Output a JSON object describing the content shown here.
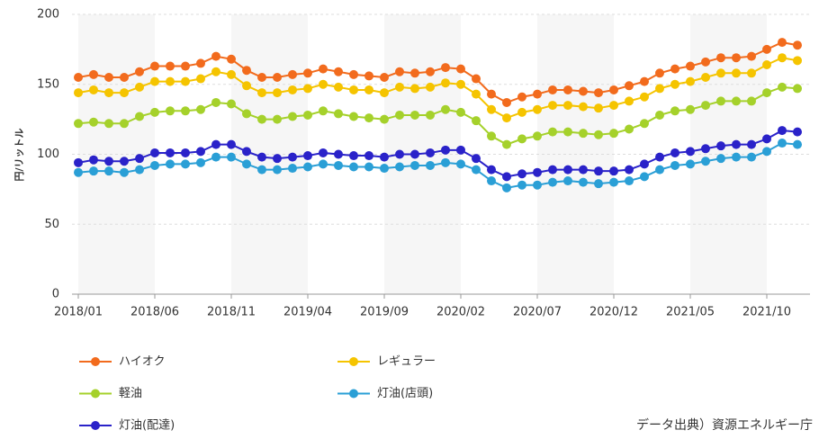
{
  "chart_data": {
    "type": "line",
    "y_label": "円/リットル",
    "source": "データ出典）資源エネルギー庁",
    "categories": [
      "2018/01",
      null,
      null,
      null,
      null,
      "2018/06",
      null,
      null,
      null,
      null,
      "2018/11",
      null,
      null,
      null,
      null,
      "2019/04",
      null,
      null,
      null,
      null,
      "2019/09",
      null,
      null,
      null,
      null,
      "2020/02",
      null,
      null,
      null,
      null,
      "2020/07",
      null,
      null,
      null,
      null,
      "2020/12",
      null,
      null,
      null,
      null,
      "2021/05",
      null,
      null,
      null,
      null,
      "2021/10",
      null,
      null
    ],
    "ylim": [
      0,
      200
    ],
    "yticks": [
      0,
      50,
      100,
      150,
      200
    ],
    "grid": true,
    "series": [
      {
        "name": "ハイオク",
        "color": "#f26b1d",
        "values": [
          155,
          157,
          155,
          155,
          159,
          163,
          163,
          163,
          165,
          170,
          168,
          160,
          155,
          155,
          157,
          158,
          161,
          159,
          157,
          156,
          155,
          159,
          158,
          159,
          162,
          161,
          154,
          143,
          137,
          141,
          143,
          146,
          146,
          145,
          144,
          146,
          149,
          152,
          158,
          161,
          163,
          166,
          169,
          169,
          170,
          175,
          180,
          178
        ]
      },
      {
        "name": "レギュラー",
        "color": "#f5c400",
        "values": [
          144,
          146,
          144,
          144,
          148,
          152,
          152,
          152,
          154,
          159,
          157,
          149,
          144,
          144,
          146,
          147,
          150,
          148,
          146,
          146,
          144,
          148,
          147,
          148,
          151,
          150,
          143,
          132,
          126,
          130,
          132,
          135,
          135,
          134,
          133,
          135,
          138,
          141,
          147,
          150,
          152,
          155,
          158,
          158,
          158,
          164,
          169,
          167
        ]
      },
      {
        "name": "軽油",
        "color": "#a5d12b",
        "values": [
          122,
          123,
          122,
          122,
          127,
          130,
          131,
          131,
          132,
          137,
          136,
          129,
          125,
          125,
          127,
          128,
          131,
          129,
          127,
          126,
          125,
          128,
          128,
          128,
          132,
          130,
          124,
          113,
          107,
          111,
          113,
          116,
          116,
          115,
          114,
          115,
          118,
          122,
          128,
          131,
          132,
          135,
          138,
          138,
          138,
          144,
          148,
          147
        ]
      },
      {
        "name": "灯油(店頭)",
        "color": "#2a9fd6",
        "values": [
          87,
          88,
          88,
          87,
          89,
          92,
          93,
          93,
          94,
          98,
          98,
          93,
          89,
          89,
          90,
          91,
          93,
          92,
          91,
          91,
          90,
          91,
          92,
          92,
          94,
          93,
          89,
          81,
          76,
          78,
          78,
          80,
          81,
          80,
          79,
          80,
          81,
          84,
          89,
          92,
          93,
          95,
          97,
          98,
          98,
          102,
          108,
          107
        ]
      },
      {
        "name": "灯油(配達)",
        "color": "#2a22c9",
        "values": [
          94,
          96,
          95,
          95,
          97,
          101,
          101,
          101,
          102,
          107,
          107,
          102,
          98,
          97,
          98,
          99,
          101,
          100,
          99,
          99,
          98,
          100,
          100,
          101,
          103,
          103,
          97,
          89,
          84,
          86,
          87,
          89,
          89,
          89,
          88,
          88,
          89,
          93,
          98,
          101,
          102,
          104,
          106,
          107,
          107,
          111,
          117,
          116
        ]
      }
    ]
  }
}
